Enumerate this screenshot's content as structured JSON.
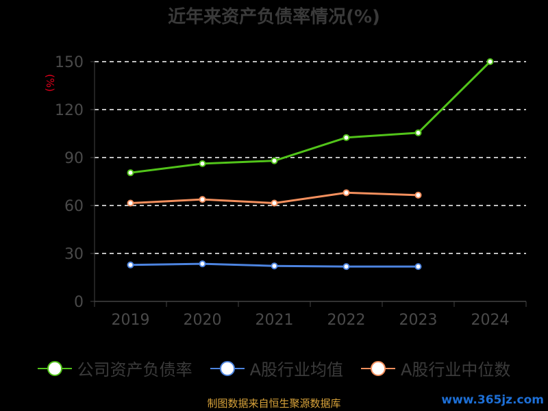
{
  "title": "近年来资产负债率情况(%)",
  "unit_label": "(%)",
  "source": "制图数据来自恒生聚源数据库",
  "watermark": "www.365jz.com",
  "chart_data": {
    "type": "line",
    "x": [
      "2019",
      "2020",
      "2021",
      "2022",
      "2023",
      "2024"
    ],
    "ylim": [
      0,
      150
    ],
    "yticks": [
      0,
      30,
      60,
      90,
      120,
      150
    ],
    "grid": true,
    "legend_position": "bottom",
    "series": [
      {
        "name": "公司资产负债率",
        "color": "#52c41a",
        "values": [
          80.5,
          86.2,
          88.0,
          102.5,
          105.5,
          150.0
        ]
      },
      {
        "name": "A股行业均值",
        "color": "#4d84e0",
        "values": [
          22.8,
          23.5,
          22.2,
          21.8,
          21.8,
          null
        ]
      },
      {
        "name": "A股行业中位数",
        "color": "#f4905e",
        "values": [
          61.5,
          63.8,
          61.5,
          68.0,
          66.5,
          null
        ]
      }
    ]
  }
}
